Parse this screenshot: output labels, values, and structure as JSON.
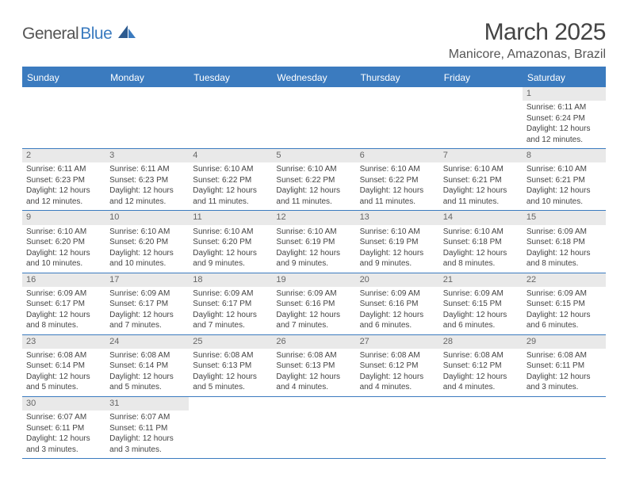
{
  "logo": {
    "dark": "General",
    "blue": "Blue"
  },
  "title": "March 2025",
  "location": "Manicore, Amazonas, Brazil",
  "colors": {
    "header_bg": "#3b7bbf",
    "header_text": "#ffffff",
    "daybar_bg": "#e9e9e9",
    "text": "#444444",
    "logo_blue": "#3b7bbf",
    "logo_dark": "#555555"
  },
  "weekdays": [
    "Sunday",
    "Monday",
    "Tuesday",
    "Wednesday",
    "Thursday",
    "Friday",
    "Saturday"
  ],
  "weeks": [
    [
      {
        "n": "",
        "sr": "",
        "ss": "",
        "dl": ""
      },
      {
        "n": "",
        "sr": "",
        "ss": "",
        "dl": ""
      },
      {
        "n": "",
        "sr": "",
        "ss": "",
        "dl": ""
      },
      {
        "n": "",
        "sr": "",
        "ss": "",
        "dl": ""
      },
      {
        "n": "",
        "sr": "",
        "ss": "",
        "dl": ""
      },
      {
        "n": "",
        "sr": "",
        "ss": "",
        "dl": ""
      },
      {
        "n": "1",
        "sr": "Sunrise: 6:11 AM",
        "ss": "Sunset: 6:24 PM",
        "dl": "Daylight: 12 hours and 12 minutes."
      }
    ],
    [
      {
        "n": "2",
        "sr": "Sunrise: 6:11 AM",
        "ss": "Sunset: 6:23 PM",
        "dl": "Daylight: 12 hours and 12 minutes."
      },
      {
        "n": "3",
        "sr": "Sunrise: 6:11 AM",
        "ss": "Sunset: 6:23 PM",
        "dl": "Daylight: 12 hours and 12 minutes."
      },
      {
        "n": "4",
        "sr": "Sunrise: 6:10 AM",
        "ss": "Sunset: 6:22 PM",
        "dl": "Daylight: 12 hours and 11 minutes."
      },
      {
        "n": "5",
        "sr": "Sunrise: 6:10 AM",
        "ss": "Sunset: 6:22 PM",
        "dl": "Daylight: 12 hours and 11 minutes."
      },
      {
        "n": "6",
        "sr": "Sunrise: 6:10 AM",
        "ss": "Sunset: 6:22 PM",
        "dl": "Daylight: 12 hours and 11 minutes."
      },
      {
        "n": "7",
        "sr": "Sunrise: 6:10 AM",
        "ss": "Sunset: 6:21 PM",
        "dl": "Daylight: 12 hours and 11 minutes."
      },
      {
        "n": "8",
        "sr": "Sunrise: 6:10 AM",
        "ss": "Sunset: 6:21 PM",
        "dl": "Daylight: 12 hours and 10 minutes."
      }
    ],
    [
      {
        "n": "9",
        "sr": "Sunrise: 6:10 AM",
        "ss": "Sunset: 6:20 PM",
        "dl": "Daylight: 12 hours and 10 minutes."
      },
      {
        "n": "10",
        "sr": "Sunrise: 6:10 AM",
        "ss": "Sunset: 6:20 PM",
        "dl": "Daylight: 12 hours and 10 minutes."
      },
      {
        "n": "11",
        "sr": "Sunrise: 6:10 AM",
        "ss": "Sunset: 6:20 PM",
        "dl": "Daylight: 12 hours and 9 minutes."
      },
      {
        "n": "12",
        "sr": "Sunrise: 6:10 AM",
        "ss": "Sunset: 6:19 PM",
        "dl": "Daylight: 12 hours and 9 minutes."
      },
      {
        "n": "13",
        "sr": "Sunrise: 6:10 AM",
        "ss": "Sunset: 6:19 PM",
        "dl": "Daylight: 12 hours and 9 minutes."
      },
      {
        "n": "14",
        "sr": "Sunrise: 6:10 AM",
        "ss": "Sunset: 6:18 PM",
        "dl": "Daylight: 12 hours and 8 minutes."
      },
      {
        "n": "15",
        "sr": "Sunrise: 6:09 AM",
        "ss": "Sunset: 6:18 PM",
        "dl": "Daylight: 12 hours and 8 minutes."
      }
    ],
    [
      {
        "n": "16",
        "sr": "Sunrise: 6:09 AM",
        "ss": "Sunset: 6:17 PM",
        "dl": "Daylight: 12 hours and 8 minutes."
      },
      {
        "n": "17",
        "sr": "Sunrise: 6:09 AM",
        "ss": "Sunset: 6:17 PM",
        "dl": "Daylight: 12 hours and 7 minutes."
      },
      {
        "n": "18",
        "sr": "Sunrise: 6:09 AM",
        "ss": "Sunset: 6:17 PM",
        "dl": "Daylight: 12 hours and 7 minutes."
      },
      {
        "n": "19",
        "sr": "Sunrise: 6:09 AM",
        "ss": "Sunset: 6:16 PM",
        "dl": "Daylight: 12 hours and 7 minutes."
      },
      {
        "n": "20",
        "sr": "Sunrise: 6:09 AM",
        "ss": "Sunset: 6:16 PM",
        "dl": "Daylight: 12 hours and 6 minutes."
      },
      {
        "n": "21",
        "sr": "Sunrise: 6:09 AM",
        "ss": "Sunset: 6:15 PM",
        "dl": "Daylight: 12 hours and 6 minutes."
      },
      {
        "n": "22",
        "sr": "Sunrise: 6:09 AM",
        "ss": "Sunset: 6:15 PM",
        "dl": "Daylight: 12 hours and 6 minutes."
      }
    ],
    [
      {
        "n": "23",
        "sr": "Sunrise: 6:08 AM",
        "ss": "Sunset: 6:14 PM",
        "dl": "Daylight: 12 hours and 5 minutes."
      },
      {
        "n": "24",
        "sr": "Sunrise: 6:08 AM",
        "ss": "Sunset: 6:14 PM",
        "dl": "Daylight: 12 hours and 5 minutes."
      },
      {
        "n": "25",
        "sr": "Sunrise: 6:08 AM",
        "ss": "Sunset: 6:13 PM",
        "dl": "Daylight: 12 hours and 5 minutes."
      },
      {
        "n": "26",
        "sr": "Sunrise: 6:08 AM",
        "ss": "Sunset: 6:13 PM",
        "dl": "Daylight: 12 hours and 4 minutes."
      },
      {
        "n": "27",
        "sr": "Sunrise: 6:08 AM",
        "ss": "Sunset: 6:12 PM",
        "dl": "Daylight: 12 hours and 4 minutes."
      },
      {
        "n": "28",
        "sr": "Sunrise: 6:08 AM",
        "ss": "Sunset: 6:12 PM",
        "dl": "Daylight: 12 hours and 4 minutes."
      },
      {
        "n": "29",
        "sr": "Sunrise: 6:08 AM",
        "ss": "Sunset: 6:11 PM",
        "dl": "Daylight: 12 hours and 3 minutes."
      }
    ],
    [
      {
        "n": "30",
        "sr": "Sunrise: 6:07 AM",
        "ss": "Sunset: 6:11 PM",
        "dl": "Daylight: 12 hours and 3 minutes."
      },
      {
        "n": "31",
        "sr": "Sunrise: 6:07 AM",
        "ss": "Sunset: 6:11 PM",
        "dl": "Daylight: 12 hours and 3 minutes."
      },
      {
        "n": "",
        "sr": "",
        "ss": "",
        "dl": ""
      },
      {
        "n": "",
        "sr": "",
        "ss": "",
        "dl": ""
      },
      {
        "n": "",
        "sr": "",
        "ss": "",
        "dl": ""
      },
      {
        "n": "",
        "sr": "",
        "ss": "",
        "dl": ""
      },
      {
        "n": "",
        "sr": "",
        "ss": "",
        "dl": ""
      }
    ]
  ]
}
